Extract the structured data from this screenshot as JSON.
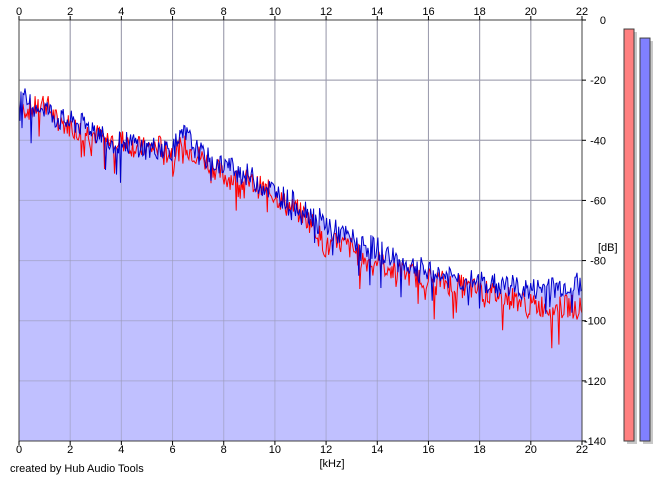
{
  "credit": "created by Hub Audio Tools",
  "chart_data": {
    "type": "line",
    "xlabel": "[kHz]",
    "ylabel": "[dB]",
    "xlim": [
      0,
      22
    ],
    "ylim": [
      -140,
      0
    ],
    "x_ticks": [
      0,
      2,
      4,
      6,
      8,
      10,
      12,
      14,
      16,
      18,
      20,
      22
    ],
    "y_ticks": [
      0,
      -20,
      -40,
      -60,
      -80,
      -100,
      -120,
      -140
    ],
    "x_tick_labels": [
      "0",
      "2",
      "4",
      "6",
      "8",
      "10",
      "12",
      "14",
      "16",
      "18",
      "20",
      "22"
    ],
    "y_tick_labels": [
      "0",
      "-20",
      "-40",
      "-60",
      "-80",
      "-100",
      "-120",
      "-140"
    ],
    "grid": true,
    "fill_color": "#c0c0ff",
    "x": [
      0,
      0.5,
      1,
      1.5,
      2,
      2.5,
      3,
      3.5,
      4,
      4.5,
      5,
      5.5,
      6,
      6.5,
      7,
      7.5,
      8,
      8.5,
      9,
      9.5,
      10,
      10.5,
      11,
      11.5,
      12,
      12.5,
      13,
      13.5,
      14,
      14.5,
      15,
      15.5,
      16,
      16.5,
      17,
      17.5,
      18,
      18.5,
      19,
      19.5,
      20,
      20.5,
      21,
      21.5,
      22
    ],
    "series": [
      {
        "color": "#ff0000",
        "values": [
          -28,
          -30,
          -27,
          -34,
          -35,
          -37,
          -38,
          -40,
          -40,
          -42,
          -43,
          -42,
          -44,
          -42,
          -45,
          -48,
          -52,
          -53,
          -54,
          -56,
          -58,
          -62,
          -64,
          -68,
          -76,
          -74,
          -76,
          -80,
          -80,
          -83,
          -84,
          -85,
          -86,
          -87,
          -88,
          -89,
          -90,
          -91,
          -92,
          -93,
          -95,
          -95,
          -96,
          -95,
          -96
        ]
      },
      {
        "color": "#0000cc",
        "values": [
          -25,
          -28,
          -29,
          -33,
          -34,
          -35,
          -36,
          -40,
          -41,
          -41,
          -43,
          -42,
          -43,
          -38,
          -44,
          -47,
          -48,
          -50,
          -52,
          -55,
          -57,
          -60,
          -62,
          -65,
          -68,
          -71,
          -73,
          -75,
          -76,
          -79,
          -81,
          -82,
          -84,
          -85,
          -86,
          -87,
          -87,
          -88,
          -88,
          -89,
          -90,
          -89,
          -89,
          -88,
          -88
        ]
      }
    ],
    "level_meters": [
      {
        "color": "#ff8080",
        "value": -3
      },
      {
        "color": "#8080ff",
        "value": -6
      }
    ]
  }
}
